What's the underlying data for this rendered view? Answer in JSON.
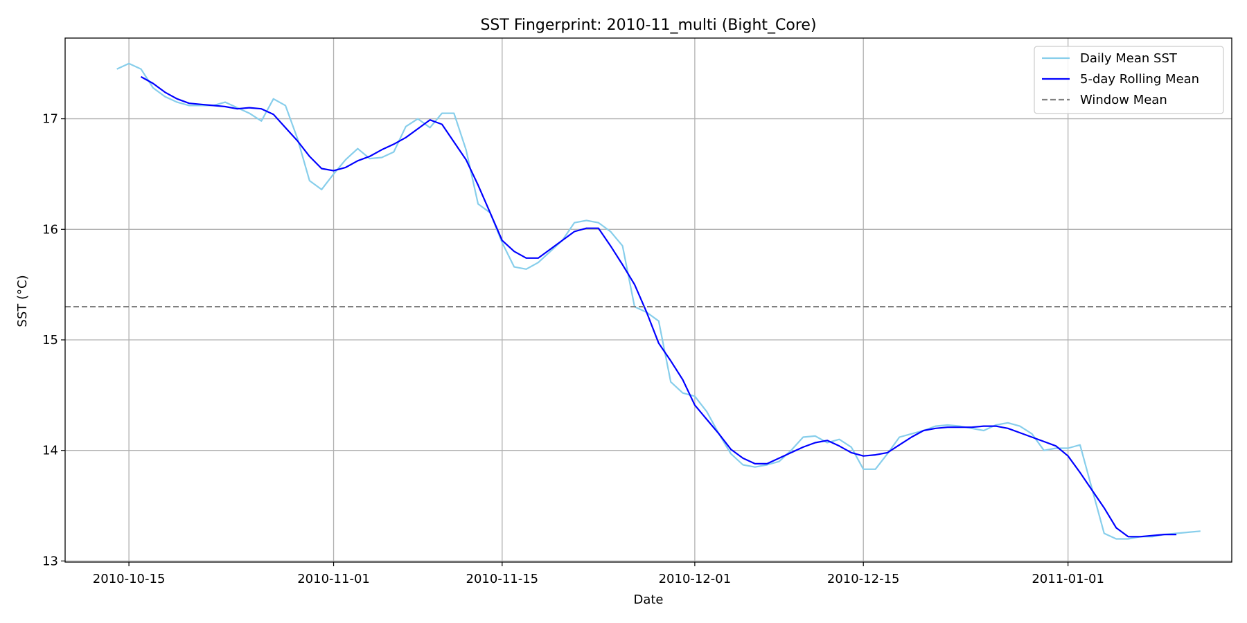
{
  "chart_data": {
    "type": "line",
    "title": "SST Fingerprint: 2010-11_multi (Bight_Core)",
    "xlabel": "Date",
    "ylabel": "SST (°C)",
    "start_date": "2010-10-05",
    "x_ticks": [
      {
        "label": "2010-10-15",
        "day": 10
      },
      {
        "label": "2010-11-01",
        "day": 27
      },
      {
        "label": "2010-11-15",
        "day": 41
      },
      {
        "label": "2010-12-01",
        "day": 57
      },
      {
        "label": "2010-12-15",
        "day": 71
      },
      {
        "label": "2011-01-01",
        "day": 88
      }
    ],
    "xlim": [
      4.7,
      101.6
    ],
    "ylim": [
      12.99,
      17.73
    ],
    "y_ticks": [
      13,
      14,
      15,
      16,
      17
    ],
    "grid": true,
    "legend_position": "top-right",
    "legend": [
      "Daily Mean SST",
      "5-day Rolling Mean",
      "Window Mean"
    ],
    "series": [
      {
        "name": "Daily Mean SST",
        "color": "#87ceeb",
        "x": [
          9,
          10,
          11,
          12,
          13,
          14,
          15,
          16,
          17,
          18,
          19,
          20,
          21,
          22,
          23,
          24,
          25,
          26,
          27,
          28,
          29,
          30,
          31,
          32,
          33,
          34,
          35,
          36,
          37,
          38,
          39,
          40,
          41,
          42,
          43,
          44,
          45,
          46,
          47,
          48,
          49,
          50,
          51,
          52,
          53,
          54,
          55,
          56,
          57,
          58,
          59,
          60,
          61,
          62,
          63,
          64,
          65,
          66,
          67,
          68,
          69,
          70,
          71,
          72,
          73,
          74,
          75,
          76,
          77,
          78,
          79,
          80,
          81,
          82,
          83,
          84,
          85,
          86,
          87,
          88,
          89,
          90,
          91,
          92,
          93,
          94,
          95,
          96,
          97,
          98,
          99
        ],
        "y": [
          17.45,
          17.5,
          17.45,
          17.28,
          17.2,
          17.15,
          17.12,
          17.12,
          17.12,
          17.15,
          17.1,
          17.05,
          16.98,
          17.18,
          17.12,
          16.82,
          16.44,
          16.36,
          16.5,
          16.63,
          16.73,
          16.64,
          16.65,
          16.7,
          16.93,
          17.0,
          16.92,
          17.05,
          17.05,
          16.72,
          16.23,
          16.15,
          15.88,
          15.66,
          15.64,
          15.7,
          15.8,
          15.9,
          16.06,
          16.08,
          16.06,
          15.98,
          15.85,
          15.3,
          15.25,
          15.17,
          14.62,
          14.52,
          14.49,
          14.35,
          14.15,
          13.97,
          13.87,
          13.85,
          13.87,
          13.9,
          14.0,
          14.12,
          14.13,
          14.07,
          14.1,
          14.03,
          13.83,
          13.83,
          13.97,
          14.12,
          14.15,
          14.18,
          14.22,
          14.23,
          14.22,
          14.2,
          14.18,
          14.23,
          14.25,
          14.22,
          14.15,
          14.0,
          14.02,
          14.02,
          14.05,
          13.65,
          13.25,
          13.2,
          13.2,
          13.22,
          13.22,
          13.24,
          13.25,
          13.26,
          13.27
        ]
      },
      {
        "name": "5-day Rolling Mean",
        "color": "#0000ff",
        "x": [
          11,
          12,
          13,
          14,
          15,
          16,
          17,
          18,
          19,
          20,
          21,
          22,
          23,
          24,
          25,
          26,
          27,
          28,
          29,
          30,
          31,
          32,
          33,
          34,
          35,
          36,
          37,
          38,
          39,
          40,
          41,
          42,
          43,
          44,
          45,
          46,
          47,
          48,
          49,
          50,
          51,
          52,
          53,
          54,
          55,
          56,
          57,
          58,
          59,
          60,
          61,
          62,
          63,
          64,
          65,
          66,
          67,
          68,
          69,
          70,
          71,
          72,
          73,
          74,
          75,
          76,
          77,
          78,
          79,
          80,
          81,
          82,
          83,
          84,
          85,
          86,
          87,
          88,
          89,
          90,
          91,
          92,
          93,
          94,
          95,
          96,
          97
        ],
        "y": [
          17.38,
          17.32,
          17.24,
          17.18,
          17.14,
          17.13,
          17.12,
          17.11,
          17.09,
          17.1,
          17.09,
          17.04,
          16.92,
          16.8,
          16.66,
          16.55,
          16.53,
          16.56,
          16.62,
          16.66,
          16.72,
          16.77,
          16.83,
          16.91,
          16.99,
          16.95,
          16.79,
          16.63,
          16.4,
          16.15,
          15.9,
          15.8,
          15.74,
          15.74,
          15.82,
          15.9,
          15.98,
          16.01,
          16.01,
          15.85,
          15.68,
          15.5,
          15.25,
          14.97,
          14.81,
          14.64,
          14.41,
          14.28,
          14.15,
          14.01,
          13.93,
          13.88,
          13.88,
          13.93,
          13.98,
          14.03,
          14.07,
          14.09,
          14.04,
          13.98,
          13.95,
          13.96,
          13.98,
          14.05,
          14.12,
          14.18,
          14.2,
          14.21,
          14.21,
          14.21,
          14.22,
          14.22,
          14.2,
          14.16,
          14.12,
          14.08,
          14.04,
          13.95,
          13.8,
          13.64,
          13.48,
          13.3,
          13.22,
          13.22,
          13.23,
          13.24,
          13.24
        ]
      },
      {
        "name": "Window Mean",
        "color": "#808080",
        "value": 15.3
      }
    ]
  }
}
